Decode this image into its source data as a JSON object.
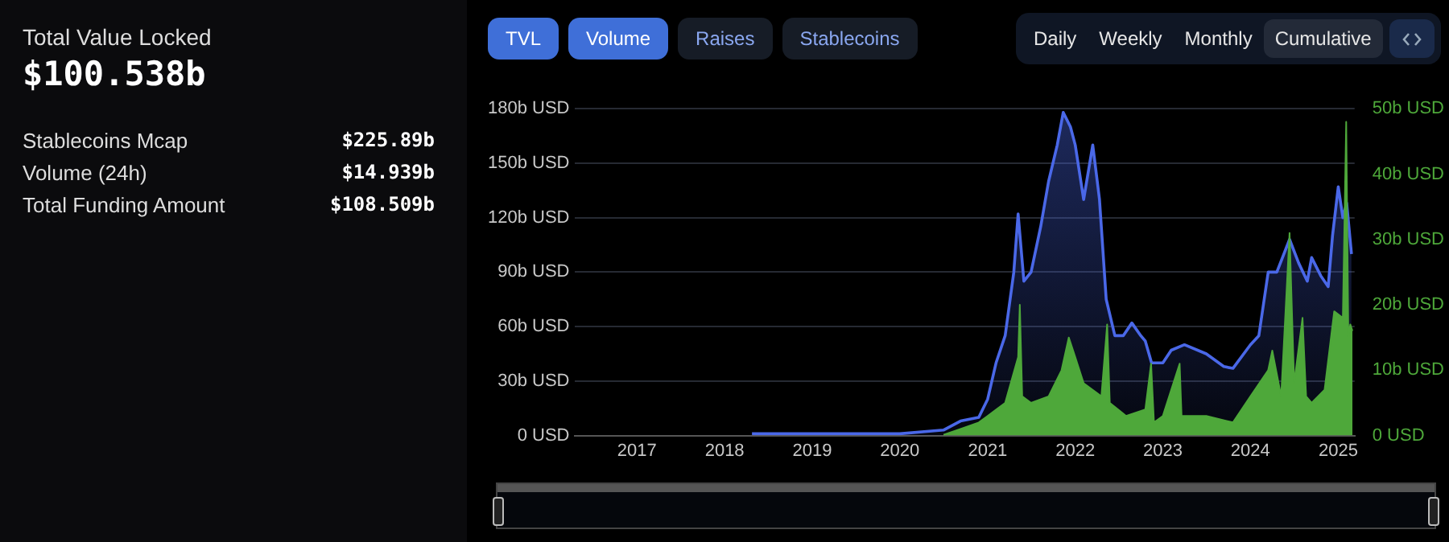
{
  "chart_data": [
    {
      "type": "other",
      "title": "Total Value Locked",
      "subtitle": "$100.538b",
      "annotations": [
        "Stablecoins Mcap",
        "$225.89b",
        "Volume (24h)",
        "$14.939b",
        "Total Funding Amount",
        "$108.509b"
      ]
    },
    {
      "type": "line",
      "xlim": [
        "2016-04-15",
        "2025-03-10"
      ],
      "xticks": [
        "2017",
        "2018",
        "2019",
        "2020",
        "2021",
        "2022",
        "2023",
        "2024",
        "2025"
      ],
      "ylim": [
        0,
        180
      ],
      "yticks": [
        {
          "value": 0,
          "label": "0 USD"
        },
        {
          "value": 30,
          "label": "30b USD"
        },
        {
          "value": 60,
          "label": "60b USD"
        },
        {
          "value": 90,
          "label": "90b USD"
        },
        {
          "value": 120,
          "label": "120b USD"
        },
        {
          "value": 150,
          "label": "150b USD"
        },
        {
          "value": 180,
          "label": "180b USD"
        }
      ],
      "y2lim": [
        0,
        50
      ],
      "y2ticks": [
        {
          "value": 0,
          "label": "0 USD"
        },
        {
          "value": 10,
          "label": "10b USD"
        },
        {
          "value": 20,
          "label": "20b USD"
        },
        {
          "value": 30,
          "label": "30b USD"
        },
        {
          "value": 40,
          "label": "40b USD"
        },
        {
          "value": 50,
          "label": "50b USD"
        }
      ],
      "grid": "y",
      "legend": false,
      "marker": "none",
      "annotations": [
        "TVL",
        "Volume",
        "Raises",
        "Stablecoins",
        "Daily",
        "Weekly",
        "Monthly",
        "Cumulative"
      ],
      "series": [
        {
          "type": "area",
          "color": "#4a68e8",
          "x": [
            "2018-04-25",
            "2019-01-01",
            "2020-01-01",
            "2020-07-01",
            "2020-09-10",
            "2020-11-25",
            "2021-01-01",
            "2021-02-05",
            "2021-03-15",
            "2021-04-20",
            "2021-05-08",
            "2021-06-01",
            "2021-07-01",
            "2021-08-10",
            "2021-09-12",
            "2021-10-18",
            "2021-11-12",
            "2021-12-12",
            "2022-01-01",
            "2022-02-05",
            "2022-03-15",
            "2022-04-12",
            "2022-05-10",
            "2022-06-15",
            "2022-07-20",
            "2022-08-25",
            "2022-10-01",
            "2022-10-20",
            "2022-11-15",
            "2023-01-01",
            "2023-02-05",
            "2023-04-01",
            "2023-07-01",
            "2023-09-12",
            "2023-10-20",
            "2024-01-01",
            "2024-02-05",
            "2024-03-15",
            "2024-04-20",
            "2024-06-12",
            "2024-07-20",
            "2024-08-25",
            "2024-09-12",
            "2024-10-20",
            "2024-11-20",
            "2024-12-08",
            "2025-01-01",
            "2025-01-20",
            "2025-02-05",
            "2025-02-25"
          ],
          "values": [
            1,
            1,
            1,
            3,
            8,
            10,
            20,
            40,
            55,
            90,
            122,
            85,
            90,
            115,
            140,
            160,
            178,
            170,
            160,
            130,
            160,
            130,
            75,
            55,
            55,
            62,
            55,
            52,
            40,
            40,
            47,
            50,
            45,
            38,
            37,
            50,
            55,
            90,
            90,
            108,
            95,
            85,
            98,
            88,
            82,
            110,
            137,
            120,
            128,
            100
          ]
        },
        {
          "type": "area",
          "axis": "y2",
          "color": "#4ea83a",
          "x": [
            "2020-07-01",
            "2020-09-10",
            "2020-11-25",
            "2021-01-01",
            "2021-03-15",
            "2021-05-08",
            "2021-05-15",
            "2021-05-25",
            "2021-07-01",
            "2021-09-12",
            "2021-11-05",
            "2021-12-05",
            "2022-01-01",
            "2022-02-05",
            "2022-04-20",
            "2022-05-14",
            "2022-05-25",
            "2022-08-01",
            "2022-10-20",
            "2022-11-13",
            "2022-11-25",
            "2023-01-01",
            "2023-03-12",
            "2023-03-20",
            "2023-07-01",
            "2023-10-20",
            "2024-01-01",
            "2024-03-15",
            "2024-04-01",
            "2024-05-08",
            "2024-06-12",
            "2024-07-01",
            "2024-08-05",
            "2024-08-20",
            "2024-09-12",
            "2024-11-05",
            "2024-12-15",
            "2025-01-20",
            "2025-02-03",
            "2025-02-12",
            "2025-02-20",
            "2025-03-01"
          ],
          "values": [
            0.1,
            1,
            2,
            3,
            5,
            12,
            20,
            6,
            5,
            6,
            10,
            15,
            12,
            8,
            6,
            17,
            5,
            3,
            4,
            11,
            2,
            3,
            11,
            3,
            3,
            2,
            6,
            10,
            13,
            6,
            31,
            8,
            18,
            6,
            5,
            7,
            19,
            18,
            48,
            15,
            17,
            16
          ]
        }
      ]
    }
  ]
}
